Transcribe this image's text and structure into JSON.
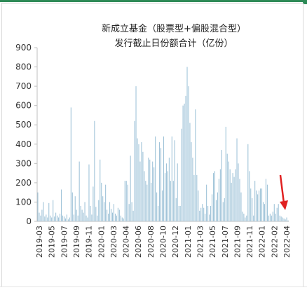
{
  "chart_data": {
    "type": "bar",
    "title": "新成立基金（股票型+偏股混合型）",
    "subtitle": "发行截止日份额合计（亿份）",
    "xlabel": "",
    "ylabel": "",
    "ylim": [
      0,
      900
    ],
    "yticks": [
      0,
      100,
      200,
      300,
      400,
      500,
      600,
      700,
      800,
      900
    ],
    "xtick_labels": [
      "2019-03",
      "2019-05",
      "2019-07",
      "2019-09",
      "2019-11",
      "2020-01",
      "2020-03",
      "2020-04",
      "2020-06",
      "2020-08",
      "2020-10",
      "2020-12",
      "2021-01",
      "2021-03",
      "2021-05",
      "2021-07",
      "2021-09",
      "2021-11",
      "2022-01",
      "2022-02",
      "2022-04"
    ],
    "grid": false,
    "legend": "none",
    "bar_color": "#9fc3d8",
    "annotation_color": "#e02020",
    "annotation": "red arrow pointing to latest bars (2022-04)",
    "values": [
      150,
      45,
      30,
      60,
      100,
      25,
      35,
      20,
      95,
      30,
      20,
      110,
      25,
      45,
      30,
      20,
      40,
      165,
      30,
      25,
      15,
      35,
      10,
      20,
      590,
      150,
      35,
      130,
      60,
      30,
      310,
      80,
      60,
      45,
      100,
      30,
      20,
      295,
      80,
      35,
      180,
      520,
      75,
      30,
      110,
      320,
      200,
      130,
      100,
      190,
      60,
      40,
      100,
      65,
      45,
      90,
      40,
      30,
      70,
      60,
      30,
      20,
      15,
      210,
      210,
      190,
      90,
      340,
      100,
      55,
      520,
      700,
      430,
      400,
      310,
      410,
      360,
      260,
      210,
      190,
      330,
      320,
      200,
      310,
      280,
      440,
      150,
      80,
      410,
      380,
      160,
      440,
      250,
      300,
      260,
      330,
      210,
      440,
      210,
      420,
      120,
      300,
      80,
      80,
      480,
      600,
      610,
      650,
      800,
      700,
      510,
      410,
      330,
      240,
      580,
      240,
      160,
      55,
      70,
      90,
      70,
      40,
      190,
      80,
      35,
      80,
      140,
      250,
      260,
      110,
      150,
      220,
      270,
      370,
      100,
      120,
      490,
      350,
      310,
      270,
      200,
      250,
      230,
      270,
      430,
      300,
      220,
      150,
      50,
      40,
      20,
      30,
      400,
      260,
      170,
      120,
      30,
      210,
      160,
      140,
      160,
      170,
      170,
      100,
      90,
      220,
      190,
      30,
      40,
      30,
      50,
      90,
      40,
      70,
      90,
      30,
      25,
      20,
      15,
      10,
      20,
      5
    ]
  }
}
